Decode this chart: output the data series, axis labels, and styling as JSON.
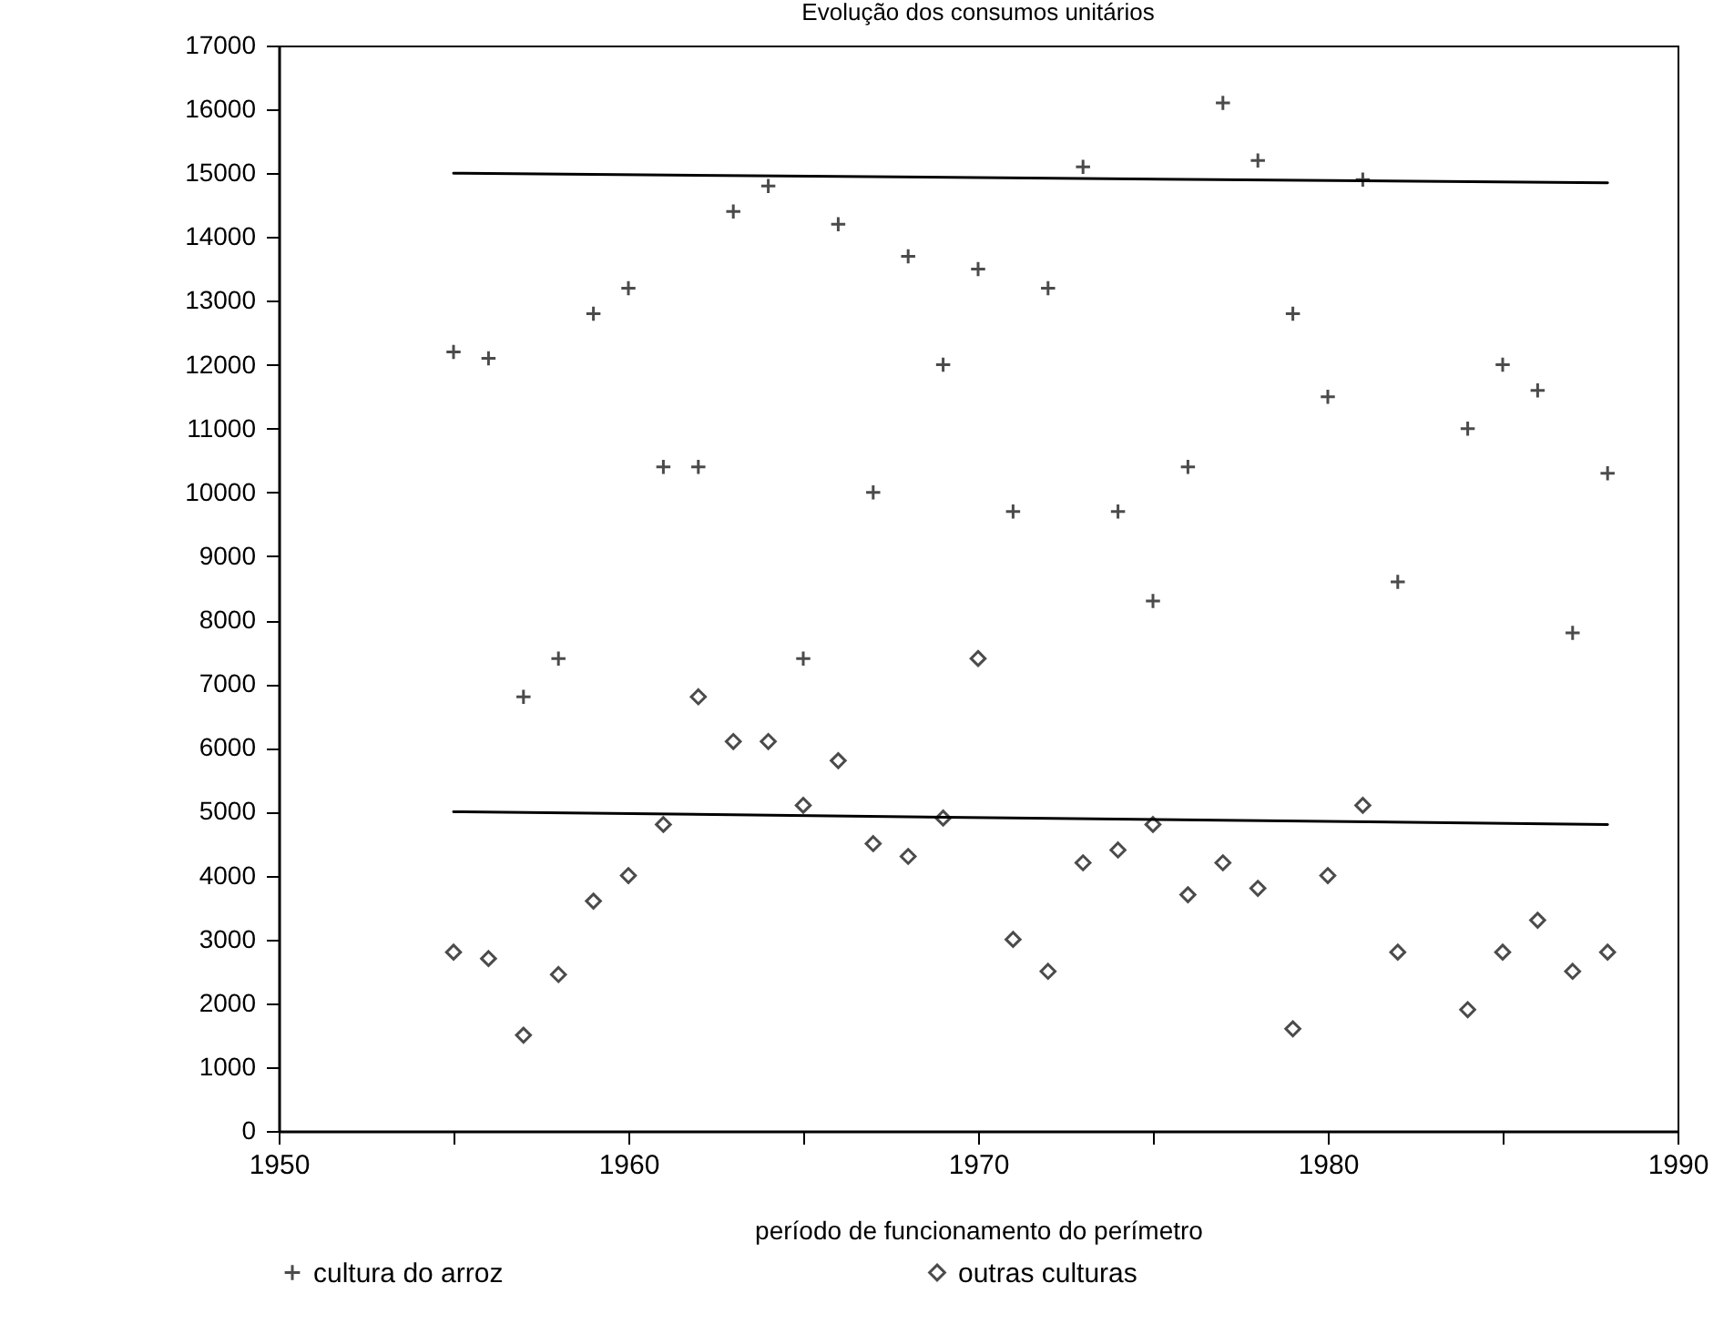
{
  "chart_data": {
    "type": "scatter",
    "title": "Evolução dos consumos unitários",
    "xlabel": "período de funcionamento do perímetro",
    "xlim": [
      1950,
      1990
    ],
    "xticks": [
      1950,
      {
        "value": 1955,
        "label": null
      },
      1960,
      {
        "value": 1965,
        "label": null
      },
      1970,
      {
        "value": 1975,
        "label": null
      },
      1980,
      {
        "value": 1985,
        "label": null
      },
      1990
    ],
    "ylim": [
      0,
      17000
    ],
    "yticks": [
      0,
      1000,
      2000,
      3000,
      4000,
      5000,
      6000,
      7000,
      8000,
      9000,
      10000,
      11000,
      12000,
      13000,
      14000,
      15000,
      16000,
      17000
    ],
    "grid": false,
    "legend": "bottom",
    "series": [
      {
        "name": "cultura do arroz",
        "color": "#000000",
        "marker": "cross",
        "x": [
          1955,
          1956,
          1957,
          1958,
          1959,
          1960,
          1961,
          1962,
          1963,
          1964,
          1965,
          1966,
          1967,
          1968,
          1969,
          1970,
          1971,
          1972,
          1973,
          1974,
          1975,
          1976,
          1977,
          1978,
          1979,
          1980,
          1981,
          1982,
          1984,
          1985,
          1986,
          1987,
          1988
        ],
        "values": [
          12200,
          12100,
          6800,
          7400,
          12800,
          13200,
          10400,
          10400,
          14400,
          14800,
          7400,
          14200,
          10000,
          13700,
          12000,
          13500,
          9700,
          13200,
          15100,
          9700,
          8300,
          10400,
          16100,
          15200,
          12800,
          11500,
          14900,
          8600,
          11000,
          12000,
          11600,
          7800,
          10300
        ]
      },
      {
        "name": "outras culturas",
        "color": "#000000",
        "marker": "diamond",
        "x": [
          1955,
          1956,
          1957,
          1958,
          1959,
          1960,
          1961,
          1962,
          1963,
          1964,
          1965,
          1966,
          1967,
          1968,
          1969,
          1970,
          1971,
          1972,
          1973,
          1974,
          1975,
          1976,
          1977,
          1978,
          1979,
          1980,
          1981,
          1982,
          1984,
          1985,
          1986,
          1987,
          1988
        ],
        "values": [
          2800,
          2700,
          1500,
          2450,
          3600,
          4000,
          4800,
          6800,
          6100,
          6100,
          5100,
          5800,
          4500,
          4300,
          4900,
          7400,
          3000,
          2500,
          4200,
          4400,
          4800,
          3700,
          4200,
          3800,
          1600,
          4000,
          5100,
          2800,
          1900,
          2800,
          3300,
          2500,
          2800
        ]
      },
      {
        "type": "line",
        "color": "#000000",
        "line_style": "solid",
        "x": [
          1955,
          1988
        ],
        "values": [
          15000,
          14850
        ]
      },
      {
        "type": "line",
        "color": "#000000",
        "line_style": "solid",
        "x": [
          1955,
          1988
        ],
        "values": [
          5000,
          4800
        ]
      }
    ]
  }
}
